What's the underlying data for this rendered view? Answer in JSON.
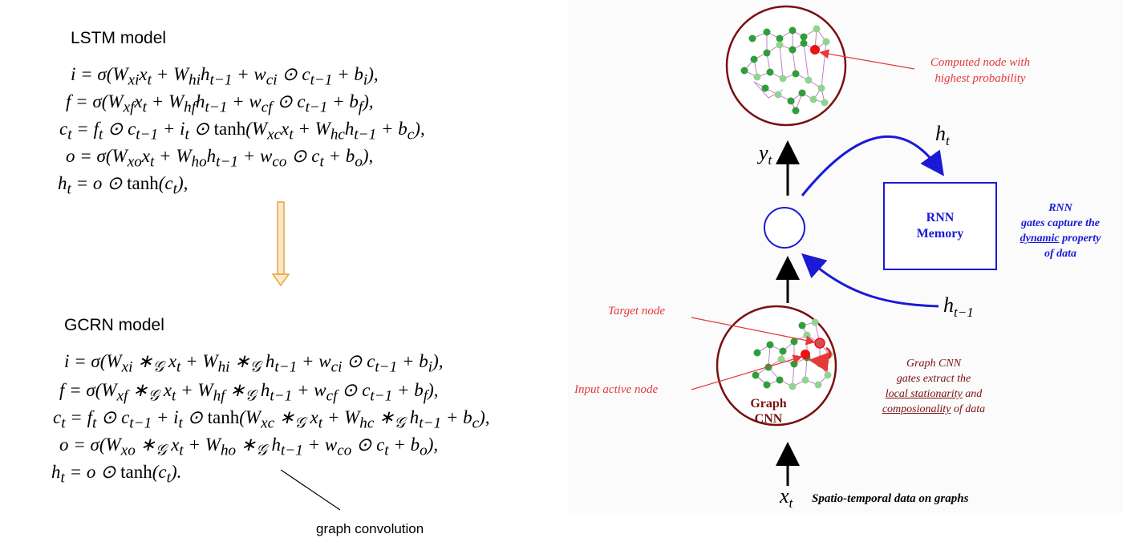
{
  "lstm": {
    "heading": "LSTM model",
    "equations": [
      "i = σ(W_{xi}x_t + W_{hi}h_{t−1} + w_{ci} ⊙ c_{t−1} + b_i),",
      "f = σ(W_{xf}x_t + W_{hf}h_{t−1} + w_{cf} ⊙ c_{t−1} + b_f),",
      "c_t = f_t ⊙ c_{t−1} + i_t ⊙ tanh(W_{xc}x_t + W_{hc}h_{t−1} + b_c),",
      "o = σ(W_{xo}x_t + W_{ho}h_{t−1} + w_{co} ⊙ c_t + b_o),",
      "h_t = o ⊙ tanh(c_t),"
    ]
  },
  "gcrn": {
    "heading": "GCRN model",
    "equations": [
      "i = σ(W_{xi} ∗_G x_t + W_{hi} ∗_G h_{t−1} + w_{ci} ⊙ c_{t−1} + b_i),",
      "f = σ(W_{xf} ∗_G x_t + W_{hf} ∗_G h_{t−1} + w_{cf} ⊙ c_{t−1} + b_f),",
      "c_t = f_t ⊙ c_{t−1} + i_t ⊙ tanh(W_{xc} ∗_G x_t + W_{hc} ∗_G h_{t−1} + b_c),",
      "o = σ(W_{xo} ∗_G x_t + W_{ho} ∗_G h_{t−1} + w_{co} ⊙ c_t + b_o),",
      "h_t = o ⊙ tanh(c_t)."
    ],
    "annotation": "graph convolution"
  },
  "diagram": {
    "yt_label": "y",
    "yt_sub": "t",
    "ht_label": "h",
    "ht_sub": "t",
    "htm1_label": "h",
    "htm1_sub": "t−1",
    "xt_label": "x",
    "xt_sub": "t",
    "xt_caption": "Spatio-temporal data on graphs",
    "computed_node_line1": "Computed node with",
    "computed_node_line2": "highest probability",
    "rnn_box_line1": "RNN",
    "rnn_box_line2": "Memory",
    "rnn_note_line1": "RNN",
    "rnn_note_line2": "gates capture the",
    "rnn_note_line3_u": "dynamic",
    "rnn_note_line3_rest": " property",
    "rnn_note_line4": "of data",
    "target_node": "Target node",
    "input_active_node": "Input active node",
    "graph_cnn_line1": "Graph",
    "graph_cnn_line2": "CNN",
    "gcnn_note_line1": "Graph CNN",
    "gcnn_note_line2": "gates extract the",
    "gcnn_note_line3_u": "local stationarity",
    "gcnn_note_line3_rest": " and",
    "gcnn_note_line4_u": "composionality",
    "gcnn_note_line4_rest": " of data"
  },
  "colors": {
    "maroon": "#7a1010",
    "blue": "#1a1ad6",
    "red": "#e53a3a",
    "orange_arrow": "#e8a040",
    "node_dark": "#2f9e3a",
    "node_light": "#8fd48f",
    "edge": "#c070c0"
  }
}
